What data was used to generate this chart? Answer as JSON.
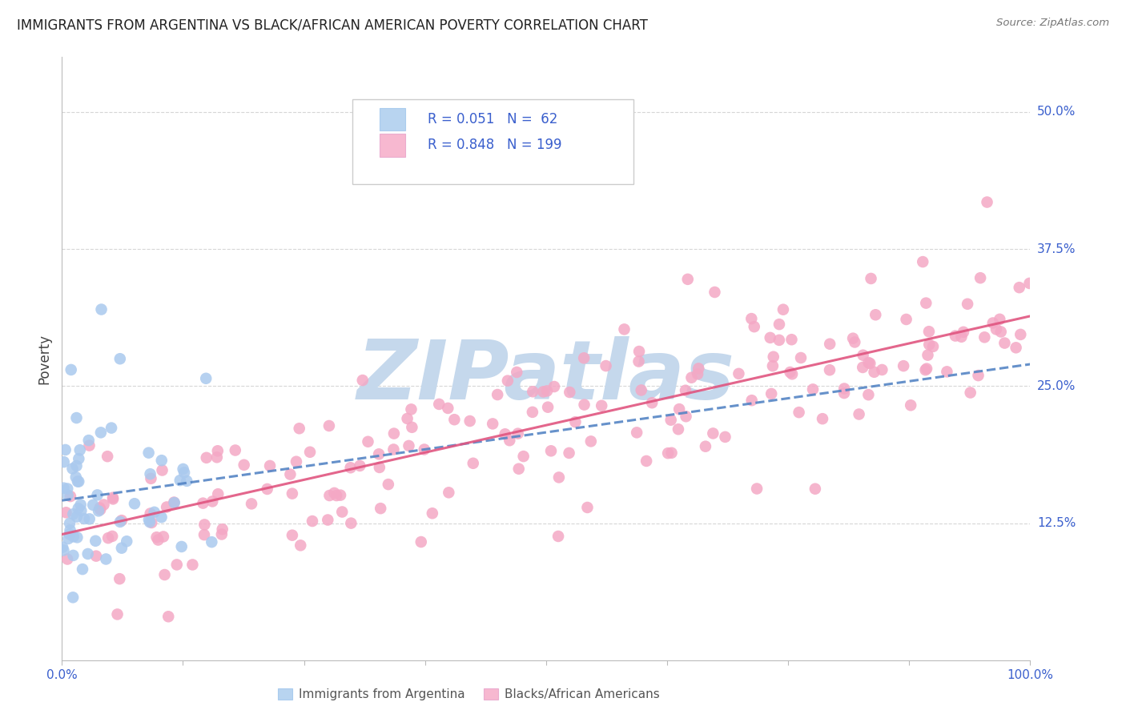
{
  "title": "IMMIGRANTS FROM ARGENTINA VS BLACK/AFRICAN AMERICAN POVERTY CORRELATION CHART",
  "source": "Source: ZipAtlas.com",
  "ylabel": "Poverty",
  "ytick_labels": [
    "12.5%",
    "25.0%",
    "37.5%",
    "50.0%"
  ],
  "ytick_values": [
    0.125,
    0.25,
    0.375,
    0.5
  ],
  "xlim": [
    0.0,
    1.0
  ],
  "ylim": [
    0.0,
    0.55
  ],
  "legend_line1": "R = 0.051   N =  62",
  "legend_line2": "R = 0.848   N = 199",
  "series1_name": "Immigrants from Argentina",
  "series2_name": "Blacks/African Americans",
  "series1_color": "#aac9ee",
  "series2_color": "#f4a8c5",
  "series1_edge_color": "#7bafd4",
  "series2_edge_color": "#e87aaa",
  "series1_line_color": "#5585c5",
  "series2_line_color": "#e05580",
  "series1_legend_color": "#b8d4f0",
  "series2_legend_color": "#f7b8d0",
  "background_color": "#ffffff",
  "grid_color": "#cccccc",
  "title_fontsize": 12,
  "watermark_text": "ZIPatlas",
  "watermark_color": "#c5d8ec",
  "label_color": "#3a5fcd",
  "tick_color": "#3a5fcd",
  "series1_slope": 0.04,
  "series1_intercept": 0.148,
  "series2_slope": 0.2,
  "series2_intercept": 0.118
}
